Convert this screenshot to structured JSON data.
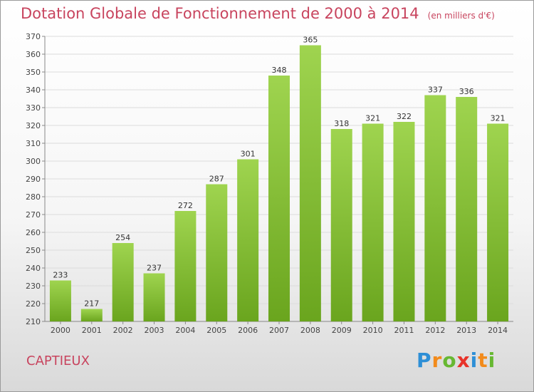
{
  "title": "Dotation Globale de Fonctionnement de 2000 à 2014",
  "unit": "(en milliers d'€)",
  "town": "CAPTIEUX",
  "logo": {
    "text": "Proxiti",
    "letters": [
      {
        "ch": "P",
        "color": "#2e8fd6"
      },
      {
        "ch": "r",
        "color": "#f28b1c"
      },
      {
        "ch": "o",
        "color": "#67b832"
      },
      {
        "ch": "x",
        "color": "#e8332a"
      },
      {
        "ch": "i",
        "color": "#2e8fd6"
      },
      {
        "ch": "t",
        "color": "#f28b1c"
      },
      {
        "ch": "i",
        "color": "#67b832"
      }
    ]
  },
  "chart_data": {
    "type": "bar",
    "categories": [
      "2000",
      "2001",
      "2002",
      "2003",
      "2004",
      "2005",
      "2006",
      "2007",
      "2008",
      "2009",
      "2010",
      "2011",
      "2012",
      "2013",
      "2014"
    ],
    "values": [
      233,
      217,
      254,
      237,
      272,
      287,
      301,
      348,
      365,
      318,
      321,
      322,
      337,
      336,
      321
    ],
    "ylim": [
      210,
      370
    ],
    "yticks": [
      210,
      220,
      230,
      240,
      250,
      260,
      270,
      280,
      290,
      300,
      310,
      320,
      330,
      340,
      350,
      360,
      370
    ],
    "grid": true,
    "bar_color_top": "#9fd44f",
    "bar_color_bottom": "#6aa51e"
  }
}
